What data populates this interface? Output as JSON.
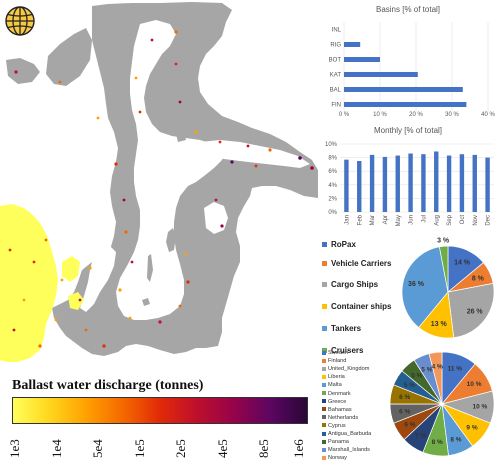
{
  "legend": {
    "title": "Ballast water discharge (tonnes)",
    "ticks": [
      "1e3",
      "1e4",
      "5e4",
      "1e5",
      "2e5",
      "4e5",
      "8e5",
      "1e6"
    ]
  },
  "colors": {
    "land": "#a6a6a6",
    "bar": "#4472c4"
  },
  "chart_data": [
    {
      "type": "bar",
      "orientation": "horizontal",
      "title": "Basins [% of total]",
      "categories": [
        "INL",
        "RIG",
        "BOT",
        "KAT",
        "BAL",
        "FIN"
      ],
      "values": [
        0,
        4.5,
        10,
        20.5,
        33,
        34
      ],
      "xlim": [
        0,
        40
      ],
      "xticks": [
        "0 %",
        "10 %",
        "20 %",
        "30 %",
        "40 %"
      ]
    },
    {
      "type": "bar",
      "title": "Monthly [% of total]",
      "categories": [
        "Jan",
        "Feb",
        "Mar",
        "Apr",
        "May",
        "Jun",
        "Jul",
        "Aug",
        "Sep",
        "Oct",
        "Nov",
        "Dec"
      ],
      "values": [
        7.7,
        7.5,
        8.4,
        8.1,
        8.3,
        8.6,
        8.5,
        8.9,
        8.3,
        8.5,
        8.4,
        8.0
      ],
      "ylim": [
        0,
        10
      ],
      "yticks": [
        "0%",
        "2%",
        "4%",
        "6%",
        "8%",
        "10%"
      ]
    },
    {
      "type": "pie",
      "labels": [
        "RoPax",
        "Vehicle Carriers",
        "Cargo Ships",
        "Container ships",
        "Tankers",
        "Cruisers"
      ],
      "values": [
        14,
        8,
        26,
        13,
        36,
        3
      ],
      "value_labels": [
        "14 %",
        "8 %",
        "26 %",
        "13 %",
        "36 %",
        "3 %"
      ],
      "colors": [
        "#4472c4",
        "#ed7d31",
        "#a5a5a5",
        "#ffc000",
        "#5b9bd5",
        "#70ad47"
      ]
    },
    {
      "type": "pie",
      "labels": [
        "Sweden",
        "Finland",
        "United_Kingdom",
        "Liberia",
        "Malta",
        "Denmark",
        "Greece",
        "Bahamas",
        "Netherlands",
        "Cyprus",
        "Antigua_Barbuda",
        "Panama",
        "Marshall_Islands",
        "Norway"
      ],
      "values": [
        11,
        10,
        10,
        9,
        8,
        8,
        7,
        6,
        6,
        6,
        5,
        5,
        5,
        4
      ],
      "value_labels": [
        "11 %",
        "10 %",
        "10 %",
        "9 %",
        "8 %",
        "8 %",
        "7 %",
        "6 %",
        "6 %",
        "6 %",
        "5 %",
        "5 %",
        "5 %",
        "4 %"
      ],
      "colors": [
        "#4472c4",
        "#ed7d31",
        "#a5a5a5",
        "#ffc000",
        "#5b9bd5",
        "#70ad47",
        "#264478",
        "#9e480e",
        "#636363",
        "#997300",
        "#255e91",
        "#43682b",
        "#698ed0",
        "#f1975a"
      ]
    }
  ]
}
